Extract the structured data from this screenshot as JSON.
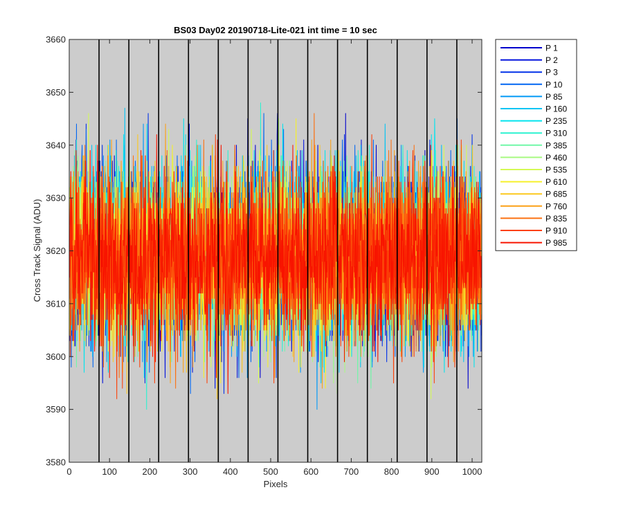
{
  "chart_data": {
    "type": "line",
    "title": "BS03 Day02 20190718-Lite-021 int time = 10 sec",
    "xlabel": "Pixels",
    "ylabel": "Cross Track Signal (ADU)",
    "xlim": [
      0,
      1024
    ],
    "ylim": [
      3580,
      3660
    ],
    "xticks": [
      0,
      100,
      200,
      300,
      400,
      500,
      600,
      700,
      800,
      900,
      1000
    ],
    "yticks": [
      3580,
      3590,
      3600,
      3610,
      3620,
      3630,
      3640,
      3650,
      3660
    ],
    "background_color": "#cccccc",
    "grid": false,
    "tap_boundaries": [
      0,
      74,
      148,
      222,
      296,
      370,
      444,
      518,
      592,
      666,
      740,
      814,
      888,
      962,
      1024
    ],
    "noise": {
      "mean": 3619,
      "sigma": 8,
      "approx_min": 3585,
      "approx_max": 3652
    },
    "legend_position": "outside-right",
    "series": [
      {
        "name": "P 1",
        "color": "#0000cc"
      },
      {
        "name": "P 2",
        "color": "#0010dd"
      },
      {
        "name": "P 3",
        "color": "#0030e8"
      },
      {
        "name": "P 10",
        "color": "#0066f2"
      },
      {
        "name": "P 85",
        "color": "#0099f7"
      },
      {
        "name": "P 160",
        "color": "#00c4f4"
      },
      {
        "name": "P 235",
        "color": "#00e4ee"
      },
      {
        "name": "P 310",
        "color": "#2af2d0"
      },
      {
        "name": "P 385",
        "color": "#70f7a8"
      },
      {
        "name": "P 460",
        "color": "#a8fa80"
      },
      {
        "name": "P 535",
        "color": "#d4fa54"
      },
      {
        "name": "P 610",
        "color": "#f6f02a"
      },
      {
        "name": "P 685",
        "color": "#fcc81e"
      },
      {
        "name": "P 760",
        "color": "#fca016"
      },
      {
        "name": "P 835",
        "color": "#fc7010"
      },
      {
        "name": "P 910",
        "color": "#fc4008"
      },
      {
        "name": "P 985",
        "color": "#f81400"
      }
    ]
  }
}
